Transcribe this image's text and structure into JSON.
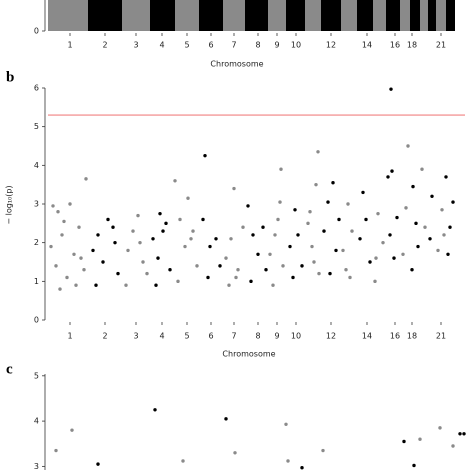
{
  "chart_data": [
    {
      "type": "histogram",
      "bins": [
        0,
        40,
        74,
        102,
        127,
        151,
        175,
        197,
        220,
        238,
        257,
        273,
        293,
        309,
        325,
        338,
        352,
        362,
        372,
        380,
        388,
        398,
        407
      ],
      "values": [
        1,
        1,
        1,
        1,
        1,
        1,
        1,
        1,
        1,
        1,
        1,
        1,
        1,
        1,
        1,
        1,
        1,
        1,
        1,
        1,
        1,
        1
      ],
      "colors": [
        "#8a8a8a",
        "#000000"
      ],
      "xlim": [
        0,
        407
      ],
      "ylim": [
        0,
        1
      ],
      "yticks": [
        0
      ],
      "xticks": [
        {
          "value": 22,
          "label": "1"
        },
        {
          "value": 57,
          "label": "2"
        },
        {
          "value": 88,
          "label": "3"
        },
        {
          "value": 114,
          "label": "4"
        },
        {
          "value": 139,
          "label": "5"
        },
        {
          "value": 163,
          "label": "6"
        },
        {
          "value": 186,
          "label": "7"
        },
        {
          "value": 210,
          "label": "8"
        },
        {
          "value": 229,
          "label": "9"
        },
        {
          "value": 248,
          "label": "10"
        },
        {
          "value": 283,
          "label": "12"
        },
        {
          "value": 319,
          "label": "14"
        },
        {
          "value": 347,
          "label": "16"
        },
        {
          "value": 364,
          "label": "18"
        },
        {
          "value": 393,
          "label": "21"
        }
      ],
      "x_label": "Chromosome"
    },
    {
      "type": "scatter",
      "panel_label": "b",
      "y_label": "− log₁₀(p)",
      "x_label": "Chromosome",
      "xlim": [
        0,
        407
      ],
      "ylim": [
        0,
        6
      ],
      "yticks": [
        0,
        1,
        2,
        3,
        4,
        5,
        6
      ],
      "threshold": 5.3,
      "threshold_color": "#f08080",
      "xticks": [
        {
          "value": 22,
          "label": "1"
        },
        {
          "value": 57,
          "label": "2"
        },
        {
          "value": 88,
          "label": "3"
        },
        {
          "value": 114,
          "label": "4"
        },
        {
          "value": 139,
          "label": "5"
        },
        {
          "value": 163,
          "label": "6"
        },
        {
          "value": 186,
          "label": "7"
        },
        {
          "value": 210,
          "label": "8"
        },
        {
          "value": 229,
          "label": "9"
        },
        {
          "value": 248,
          "label": "10"
        },
        {
          "value": 283,
          "label": "12"
        },
        {
          "value": 319,
          "label": "14"
        },
        {
          "value": 347,
          "label": "16"
        },
        {
          "value": 364,
          "label": "18"
        },
        {
          "value": 393,
          "label": "21"
        }
      ],
      "series": [
        {
          "color": "#8a8a8a",
          "x": [
            5,
            10,
            22,
            38,
            3,
            8,
            14,
            19,
            26,
            31,
            36,
            12,
            28,
            90,
            127,
            140,
            80,
            85,
            95,
            99,
            78,
            92,
            186,
            232,
            233,
            178,
            183,
            190,
            195,
            181,
            188,
            270,
            268,
            222,
            227,
            235,
            225,
            260,
            264,
            271,
            262,
            300,
            295,
            304,
            298,
            330,
            328,
            335,
            360,
            358,
            355,
            394,
            374,
            377,
            390,
            396,
            132,
            137,
            145,
            149,
            130,
            143,
            16,
            33,
            230,
            302,
            266,
            327
          ],
          "values": [
            2.95,
            2.8,
            3.0,
            3.65,
            1.9,
            1.4,
            2.2,
            1.1,
            1.7,
            2.4,
            1.3,
            0.8,
            0.9,
            2.7,
            3.6,
            3.15,
            1.8,
            2.3,
            1.5,
            1.2,
            0.9,
            2.0,
            3.4,
            3.05,
            3.9,
            1.6,
            2.1,
            1.3,
            2.4,
            0.9,
            1.1,
            4.35,
            3.5,
            1.7,
            2.2,
            1.4,
            0.9,
            2.5,
            1.9,
            1.2,
            2.8,
            3.0,
            1.8,
            2.3,
            1.3,
            2.75,
            1.6,
            2.0,
            4.5,
            2.9,
            1.7,
            2.85,
            3.9,
            2.4,
            1.8,
            2.2,
            2.6,
            1.9,
            2.3,
            1.4,
            1.0,
            2.1,
            2.55,
            1.6,
            2.6,
            1.1,
            1.5,
            1.0
          ]
        },
        {
          "color": "#000000",
          "x": [
            60,
            45,
            50,
            55,
            65,
            70,
            48,
            67,
            112,
            105,
            110,
            118,
            122,
            108,
            115,
            157,
            155,
            162,
            168,
            172,
            160,
            200,
            205,
            210,
            215,
            218,
            203,
            247,
            242,
            250,
            254,
            245,
            285,
            280,
            276,
            288,
            291,
            282,
            315,
            312,
            318,
            322,
            343,
            344,
            340,
            349,
            342,
            346,
            398,
            405,
            402,
            400,
            384,
            382,
            365,
            368,
            370,
            364
          ],
          "values": [
            2.6,
            1.8,
            2.2,
            1.5,
            2.4,
            1.2,
            0.9,
            2.0,
            2.75,
            2.1,
            1.6,
            2.5,
            1.3,
            0.9,
            2.3,
            4.25,
            2.6,
            1.9,
            2.1,
            1.4,
            1.1,
            2.95,
            2.2,
            1.7,
            2.4,
            1.3,
            1.0,
            2.85,
            1.9,
            2.2,
            1.4,
            1.1,
            3.55,
            3.05,
            2.3,
            1.8,
            2.6,
            1.2,
            3.3,
            2.1,
            2.6,
            1.5,
            5.97,
            3.85,
            3.7,
            2.65,
            2.2,
            1.6,
            3.7,
            3.05,
            2.4,
            1.7,
            3.2,
            2.1,
            3.45,
            2.5,
            1.9,
            1.3
          ]
        }
      ]
    },
    {
      "type": "scatter",
      "panel_label": "c",
      "xlim": [
        0,
        407
      ],
      "ylim": [
        2.92,
        5.04
      ],
      "yticks": [
        3,
        4,
        5
      ],
      "series": [
        {
          "color": "#8a8a8a",
          "x": [
            8,
            24,
            135,
            187,
            238,
            240,
            275,
            392,
            405,
            372
          ],
          "values": [
            3.35,
            3.8,
            3.12,
            3.3,
            3.93,
            3.12,
            3.35,
            3.85,
            3.45,
            3.6
          ]
        },
        {
          "color": "#000000",
          "x": [
            50,
            107,
            178,
            254,
            356,
            412,
            416,
            366
          ],
          "values": [
            3.05,
            4.25,
            4.05,
            2.97,
            3.55,
            3.72,
            3.72,
            3.02
          ]
        }
      ]
    }
  ]
}
